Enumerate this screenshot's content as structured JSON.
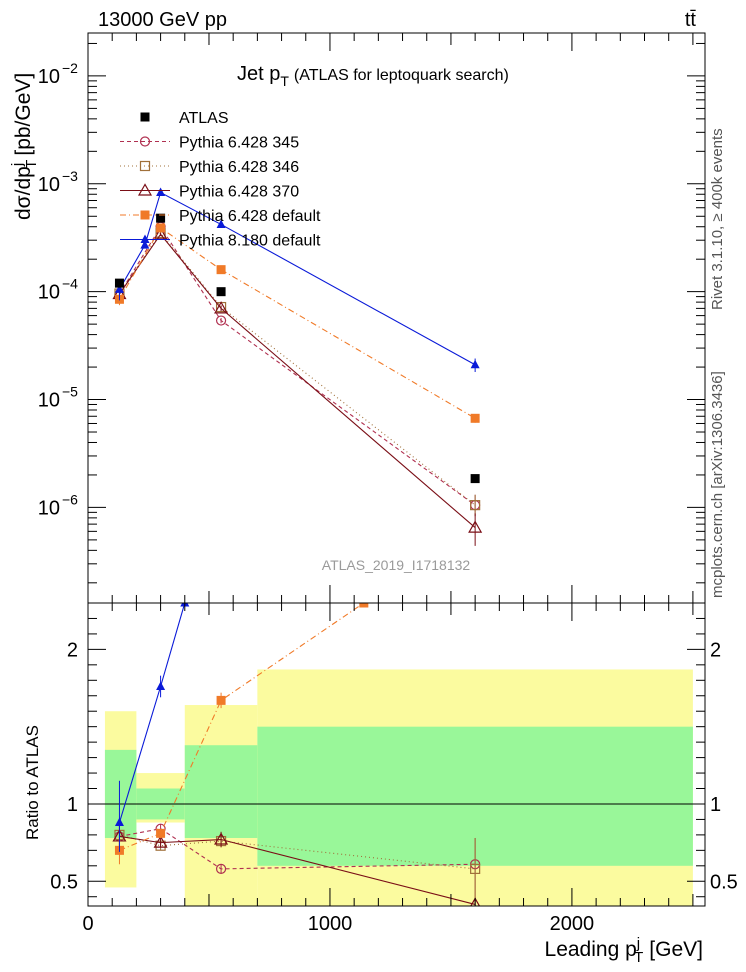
{
  "header": {
    "left": "13000 GeV pp",
    "right": "tt̄",
    "side_rivet": "Rivet 3.1.10, ≥ 400k events",
    "side_mcplots": "mcplots.cern.ch [arXiv:1306.3436]"
  },
  "chart_data": [
    {
      "type": "scatter",
      "title": "Jet p_T (ATLAS for leptoquark search)",
      "title_main": "Jet p",
      "title_sub": "T",
      "title_rest": "(ATLAS for leptoquark search)",
      "ylabel": "dσ/dp_T^j [pb/GeV]",
      "ylabel_parts": {
        "main": "dσ/dp",
        "sup": "j",
        "sub": "T",
        "rest": "[pb/GeV]"
      },
      "yscale": "log",
      "ylim": [
        1.3e-07,
        0.025
      ],
      "xlim": [
        0,
        2550
      ],
      "y_tick_labels": [
        {
          "value": 1e-06,
          "mant": "10",
          "exp": "−6"
        },
        {
          "value": 1e-05,
          "mant": "10",
          "exp": "−5"
        },
        {
          "value": 0.0001,
          "mant": "10",
          "exp": "−4"
        },
        {
          "value": 0.001,
          "mant": "10",
          "exp": "−3"
        },
        {
          "value": 0.01,
          "mant": "10",
          "exp": "−2"
        }
      ],
      "watermark": "ATLAS_2019_I1718132",
      "legend_position": "top-left",
      "series": [
        {
          "name": "ATLAS",
          "color": "#000000",
          "marker": "square-filled",
          "dash": "none",
          "points": [
            {
              "x": 130,
              "y": 0.00012
            },
            {
              "x": 300,
              "y": 0.00048
            },
            {
              "x": 550,
              "y": 0.0001
            },
            {
              "x": 1600,
              "y": 1.85e-06
            }
          ]
        },
        {
          "name": "Pythia 6.428 345",
          "color": "#b03050",
          "marker": "circle-open",
          "dash": "4,3",
          "points": [
            {
              "x": 130,
              "y": 9.5e-05,
              "elo": 1.1e-05,
              "ehi": 1.1e-05
            },
            {
              "x": 300,
              "y": 0.0004,
              "elo": 1.2e-05,
              "ehi": 1.2e-05
            },
            {
              "x": 550,
              "y": 5.4e-05,
              "elo": 3e-06,
              "ehi": 3e-06
            },
            {
              "x": 1600,
              "y": 1.05e-06,
              "elo": 2.2e-07,
              "ehi": 2.6e-07
            }
          ]
        },
        {
          "name": "Pythia 6.428 346",
          "color": "#a0703a",
          "marker": "square-open",
          "dash": "1,3",
          "points": [
            {
              "x": 130,
              "y": 9.6e-05,
              "elo": 1.2e-05,
              "ehi": 1.2e-05
            },
            {
              "x": 300,
              "y": 0.00035,
              "elo": 1.2e-05,
              "ehi": 1.2e-05
            },
            {
              "x": 550,
              "y": 7.2e-05,
              "elo": 3e-06,
              "ehi": 3e-06
            },
            {
              "x": 1600,
              "y": 1.05e-06,
              "elo": 2.2e-07,
              "ehi": 2.6e-07
            }
          ]
        },
        {
          "name": "Pythia 6.428 370",
          "color": "#7a0e16",
          "marker": "triangle-open",
          "dash": "none",
          "points": [
            {
              "x": 130,
              "y": 9.5e-05,
              "elo": 1.1e-05,
              "ehi": 1.1e-05
            },
            {
              "x": 300,
              "y": 0.00034,
              "elo": 1.2e-05,
              "ehi": 1.2e-05
            },
            {
              "x": 550,
              "y": 7e-05,
              "elo": 4e-06,
              "ehi": 4e-06
            },
            {
              "x": 1600,
              "y": 6.5e-07,
              "elo": 2.1e-07,
              "ehi": 2.3e-07
            }
          ]
        },
        {
          "name": "Pythia 6.428 default",
          "color": "#f07a28",
          "marker": "square-filled",
          "dash": "6,3,1,3",
          "points": [
            {
              "x": 130,
              "y": 8.5e-05,
              "elo": 1e-05,
              "ehi": 1e-05
            },
            {
              "x": 300,
              "y": 0.00039,
              "elo": 1.2e-05,
              "ehi": 1.2e-05
            },
            {
              "x": 550,
              "y": 0.00016,
              "elo": 5e-06,
              "ehi": 5e-06
            },
            {
              "x": 1600,
              "y": 6.7e-06,
              "elo": 6e-07,
              "ehi": 6e-07
            }
          ]
        },
        {
          "name": "Pythia 8.180 default",
          "color": "#0a1ad8",
          "marker": "triangle-filled",
          "dash": "none",
          "points": [
            {
              "x": 130,
              "y": 0.000105,
              "elo": 2.2e-05,
              "ehi": 2.2e-05
            },
            {
              "x": 235,
              "y": 0.00027
            },
            {
              "x": 300,
              "y": 0.00083,
              "elo": 2.5e-05,
              "ehi": 2.5e-05
            },
            {
              "x": 550,
              "y": 0.00042,
              "elo": 2.5e-05,
              "ehi": 2.5e-05
            },
            {
              "x": 1600,
              "y": 2.1e-05,
              "elo": 3e-06,
              "ehi": 3e-06
            }
          ]
        }
      ]
    },
    {
      "type": "scatter",
      "ylabel": "Ratio to ATLAS",
      "xlabel": "Leading p_T^j [GeV]",
      "xlabel_parts": {
        "main": "Leading p",
        "sup": "j",
        "sub": "T",
        "rest": "[GeV]"
      },
      "xlim": [
        0,
        2550
      ],
      "ylim": [
        0.34,
        2.3
      ],
      "x_ticks": [
        {
          "value": 0,
          "label": "0"
        },
        {
          "value": 1000,
          "label": "1000"
        },
        {
          "value": 2000,
          "label": "2000"
        }
      ],
      "y_ticks": [
        {
          "value": 0.5,
          "label": "0.5"
        },
        {
          "value": 1,
          "label": "1"
        },
        {
          "value": 2,
          "label": "2"
        }
      ],
      "bands": [
        {
          "x0": 70,
          "x1": 200,
          "inner": [
            0.78,
            1.35
          ],
          "outer": [
            0.46,
            1.6
          ]
        },
        {
          "x0": 200,
          "x1": 400,
          "inner": [
            0.9,
            1.1
          ],
          "outer": [
            0.88,
            1.2
          ]
        },
        {
          "x0": 400,
          "x1": 700,
          "inner": [
            0.78,
            1.38
          ],
          "outer": [
            0.34,
            1.64
          ]
        },
        {
          "x0": 700,
          "x1": 2500,
          "inner": [
            0.6,
            1.5
          ],
          "outer": [
            0.34,
            1.87
          ]
        }
      ],
      "band_colors": {
        "inner": "#99f799",
        "outer": "#fbfb9f"
      },
      "series": [
        {
          "name": "Pythia 6.428 345",
          "color": "#b03050",
          "marker": "circle-open",
          "dash": "4,3",
          "points": [
            {
              "x": 130,
              "y": 0.79,
              "elo": 0.1,
              "ehi": 0.1
            },
            {
              "x": 300,
              "y": 0.84,
              "elo": 0.03,
              "ehi": 0.03
            },
            {
              "x": 550,
              "y": 0.58,
              "elo": 0.03,
              "ehi": 0.03
            },
            {
              "x": 1600,
              "y": 0.61,
              "elo": 0.27,
              "ehi": 0.17
            }
          ]
        },
        {
          "name": "Pythia 6.428 346",
          "color": "#a0703a",
          "marker": "square-open",
          "dash": "1,3",
          "points": [
            {
              "x": 130,
              "y": 0.8,
              "elo": 0.1,
              "ehi": 0.1
            },
            {
              "x": 300,
              "y": 0.73,
              "elo": 0.03,
              "ehi": 0.03
            },
            {
              "x": 550,
              "y": 0.76,
              "elo": 0.04,
              "ehi": 0.04
            },
            {
              "x": 1600,
              "y": 0.58,
              "elo": 0.27,
              "ehi": 0.2
            }
          ]
        },
        {
          "name": "Pythia 6.428 370",
          "color": "#7a0e16",
          "marker": "triangle-open",
          "dash": "none",
          "points": [
            {
              "x": 130,
              "y": 0.79,
              "elo": 0.1,
              "ehi": 0.1
            },
            {
              "x": 300,
              "y": 0.75,
              "elo": 0.03,
              "ehi": 0.03
            },
            {
              "x": 550,
              "y": 0.77,
              "elo": 0.05,
              "ehi": 0.05
            },
            {
              "x": 1600,
              "y": 0.35
            }
          ]
        },
        {
          "name": "Pythia 6.428 default",
          "color": "#f07a28",
          "marker": "square-filled",
          "dash": "6,3,1,3",
          "points": [
            {
              "x": 130,
              "y": 0.7,
              "elo": 0.09,
              "ehi": 0.09
            },
            {
              "x": 300,
              "y": 0.81,
              "elo": 0.03,
              "ehi": 0.03
            },
            {
              "x": 550,
              "y": 1.67,
              "elo": 0.05,
              "ehi": 0.05
            },
            {
              "x": 1140,
              "y": 2.3
            }
          ]
        },
        {
          "name": "Pythia 8.180 default",
          "color": "#0a1ad8",
          "marker": "triangle-filled",
          "dash": "none",
          "points": [
            {
              "x": 130,
              "y": 0.88,
              "elo": 0.19,
              "ehi": 0.27
            },
            {
              "x": 300,
              "y": 1.76,
              "elo": 0.07,
              "ehi": 0.07
            },
            {
              "x": 400,
              "y": 2.3
            }
          ]
        }
      ]
    }
  ]
}
